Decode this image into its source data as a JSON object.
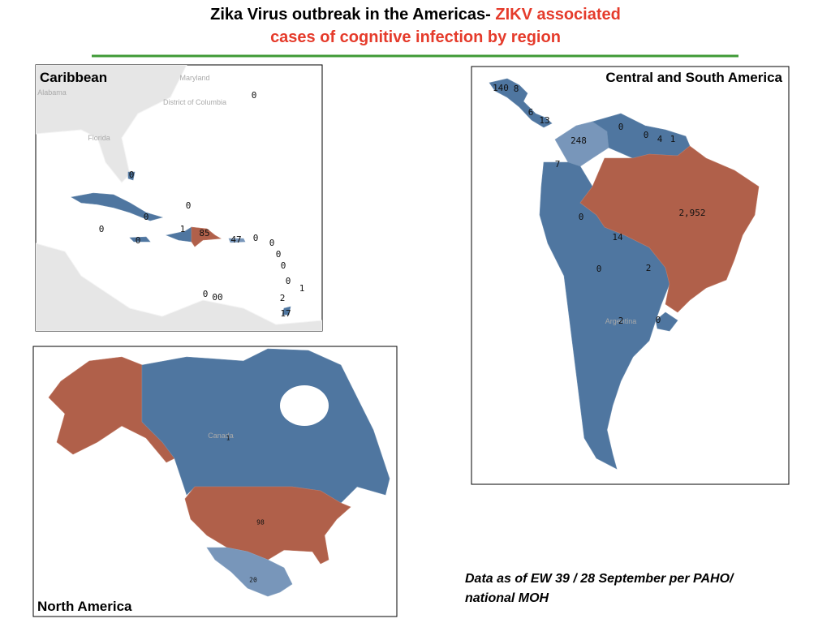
{
  "title": {
    "part1": "Zika Virus outbreak in the Americas- ",
    "part2": "ZIKV associated",
    "line2": "cases of cognitive infection by region"
  },
  "panels": [
    {
      "title": "Caribbean",
      "basemap": [
        "Maryland",
        "District of Columbia",
        "Florida",
        "Alabama"
      ],
      "labels": [
        0,
        0,
        0,
        0,
        0,
        1,
        85,
        0,
        47,
        0,
        0,
        0,
        0,
        0,
        1,
        0,
        "00",
        2,
        17
      ]
    },
    {
      "title": "Central and South America",
      "basemap": [
        "Argentina"
      ],
      "labels": [
        140,
        8,
        6,
        13,
        0,
        0,
        4,
        1,
        248,
        7,
        0,
        "2,952",
        14,
        0,
        2,
        2,
        0
      ]
    },
    {
      "title": "North America",
      "basemap": [
        "Canada"
      ],
      "labels": [
        1,
        98,
        20
      ]
    }
  ],
  "footnote": {
    "line1": "Data as of EW 39 / 28 September per PAHO/",
    "line2": "national MOH"
  }
}
